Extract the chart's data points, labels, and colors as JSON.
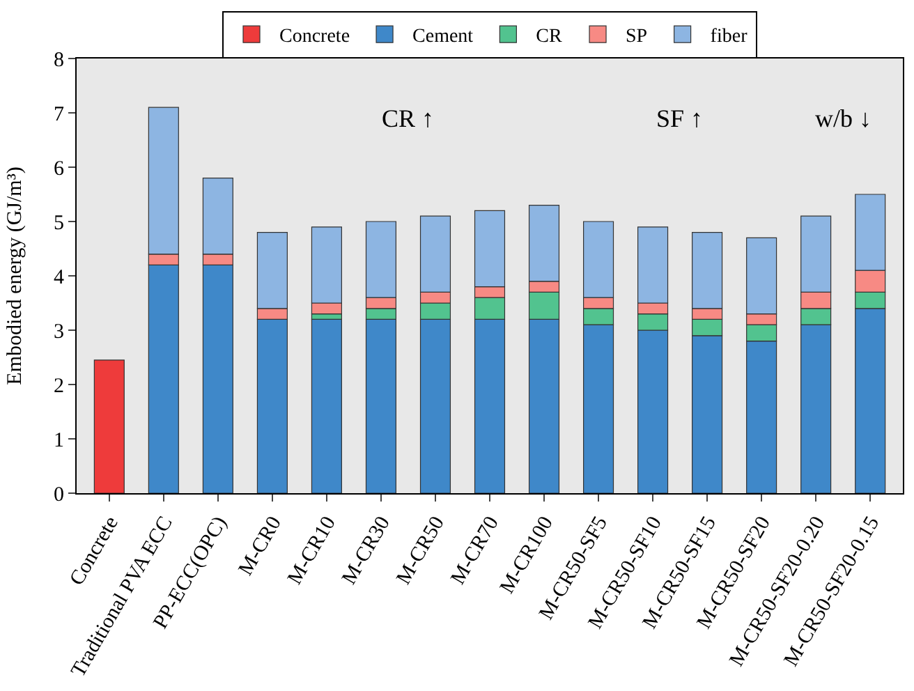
{
  "chart_data": {
    "type": "bar",
    "stacked": true,
    "ylabel": "Embodied energy (GJ/m³)",
    "categories": [
      "Concrete",
      "Traditional PVA ECC",
      "PP-ECC(OPC)",
      "M-CR0",
      "M-CR10",
      "M-CR30",
      "M-CR50",
      "M-CR70",
      "M-CR100",
      "M-CR50-SF5",
      "M-CR50-SF10",
      "M-CR50-SF15",
      "M-CR50-SF20",
      "M-CR50-SF20-0.20",
      "M-CR50-SF20-0.15"
    ],
    "series": [
      {
        "name": "Concrete",
        "color": "#ee3b3b",
        "values": [
          2.45,
          null,
          null,
          null,
          null,
          null,
          null,
          null,
          null,
          null,
          null,
          null,
          null,
          null,
          null
        ]
      },
      {
        "name": "Cement",
        "color": "#3f88c9",
        "values": [
          null,
          4.2,
          4.2,
          3.2,
          3.2,
          3.2,
          3.2,
          3.2,
          3.2,
          3.1,
          3.0,
          2.9,
          2.8,
          3.1,
          3.4
        ]
      },
      {
        "name": "CR",
        "color": "#52c38f",
        "values": [
          null,
          null,
          null,
          null,
          0.1,
          0.2,
          0.3,
          0.4,
          0.5,
          0.3,
          0.3,
          0.3,
          0.3,
          0.3,
          0.3
        ]
      },
      {
        "name": "SP",
        "color": "#f78a84",
        "values": [
          null,
          0.2,
          0.2,
          0.2,
          0.2,
          0.2,
          0.2,
          0.2,
          0.2,
          0.2,
          0.2,
          0.2,
          0.2,
          0.3,
          0.4
        ]
      },
      {
        "name": "fiber",
        "color": "#8db5e2",
        "values": [
          null,
          2.7,
          1.4,
          1.4,
          1.4,
          1.4,
          1.4,
          1.4,
          1.4,
          1.4,
          1.4,
          1.4,
          1.4,
          1.4,
          1.4
        ]
      }
    ],
    "ylim": [
      0,
      8
    ],
    "yticks": [
      0,
      1,
      2,
      3,
      4,
      5,
      6,
      7,
      8
    ],
    "grid": false,
    "legend": "top",
    "annotations": [
      "CR ↑",
      "SF ↑",
      "w/b ↓"
    ]
  }
}
